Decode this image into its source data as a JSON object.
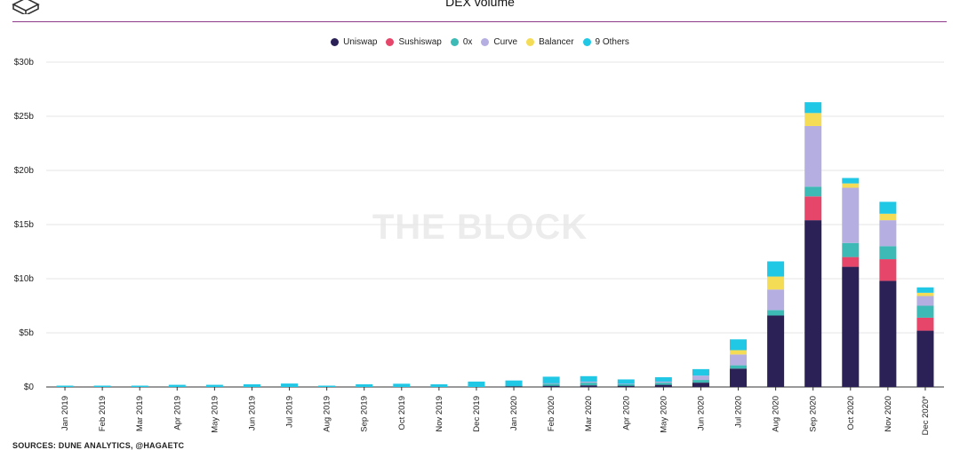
{
  "header": {
    "title": "DEX volume",
    "logo_icon": "the-block-cube-icon"
  },
  "watermark": "THE BLOCK",
  "footer": {
    "source": "SOURCES: DUNE ANALYTICS, @HAGAETC"
  },
  "colors": {
    "Uniswap": "#2b2157",
    "Sushiswap": "#e6466a",
    "0x": "#3dbab5",
    "Curve": "#b5aee0",
    "Balancer": "#f5dc57",
    "9 Others": "#20c8e6",
    "title_rule": "#8e3a8a"
  },
  "chart_data": {
    "type": "bar",
    "stacked": true,
    "categories": [
      "Jan 2019",
      "Feb 2019",
      "Mar 2019",
      "Apr 2019",
      "May 2019",
      "Jun 2019",
      "Jul 2019",
      "Aug 2019",
      "Sep 2019",
      "Oct 2019",
      "Nov 2019",
      "Dec 2019",
      "Jan 2020",
      "Feb 2020",
      "Mar 2020",
      "Apr 2020",
      "May 2020",
      "Jun 2020",
      "Jul 2020",
      "Aug 2020",
      "Sep 2020",
      "Oct 2020",
      "Nov 2020",
      "Dec 2020*"
    ],
    "series": [
      {
        "name": "Uniswap",
        "values": [
          0,
          0,
          0,
          0,
          0,
          0,
          0,
          0,
          0,
          0,
          0,
          0,
          0.05,
          0.1,
          0.15,
          0.1,
          0.2,
          0.4,
          1.7,
          6.6,
          15.4,
          11.1,
          9.8,
          5.2
        ]
      },
      {
        "name": "Sushiswap",
        "values": [
          0,
          0,
          0,
          0,
          0,
          0,
          0,
          0,
          0,
          0,
          0,
          0,
          0,
          0,
          0,
          0,
          0,
          0,
          0,
          0,
          2.2,
          0.9,
          2.0,
          1.2
        ]
      },
      {
        "name": "0x",
        "values": [
          0,
          0,
          0,
          0,
          0,
          0,
          0,
          0,
          0,
          0,
          0,
          0,
          0.05,
          0.2,
          0.25,
          0.15,
          0.2,
          0.25,
          0.3,
          0.5,
          0.9,
          1.3,
          1.2,
          1.1
        ]
      },
      {
        "name": "Curve",
        "values": [
          0,
          0,
          0,
          0,
          0,
          0,
          0,
          0,
          0,
          0,
          0,
          0,
          0,
          0.05,
          0.1,
          0.05,
          0.1,
          0.4,
          1.0,
          1.9,
          5.6,
          5.1,
          2.4,
          0.9
        ]
      },
      {
        "name": "Balancer",
        "values": [
          0,
          0,
          0,
          0,
          0,
          0,
          0,
          0,
          0,
          0,
          0,
          0,
          0,
          0,
          0,
          0,
          0,
          0,
          0.4,
          1.2,
          1.2,
          0.4,
          0.6,
          0.3
        ]
      },
      {
        "name": "9 Others",
        "values": [
          0.05,
          0.08,
          0.12,
          0.2,
          0.2,
          0.25,
          0.32,
          0.1,
          0.25,
          0.3,
          0.25,
          0.5,
          0.5,
          0.6,
          0.5,
          0.4,
          0.4,
          0.6,
          1.0,
          1.4,
          1.0,
          0.5,
          1.1,
          0.5
        ]
      }
    ],
    "y_ticks": [
      "$0",
      "$5b",
      "$10b",
      "$15b",
      "$20b",
      "$25b",
      "$30b"
    ],
    "ylim": [
      0,
      30
    ],
    "xlabel": "",
    "ylabel": "",
    "grid": true,
    "legend_position": "top-center"
  }
}
